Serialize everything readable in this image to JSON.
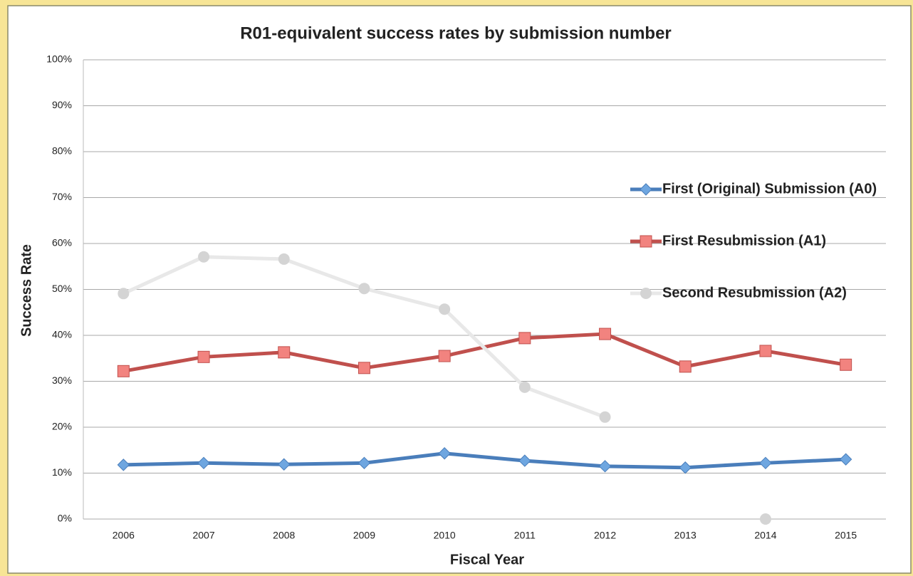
{
  "chart_data": {
    "type": "line",
    "title": "R01-equivalent success rates by submission number",
    "x_label": "Fiscal Year",
    "y_label": "Success Rate",
    "categories": [
      "2006",
      "2007",
      "2008",
      "2009",
      "2010",
      "2011",
      "2012",
      "2013",
      "2014",
      "2015"
    ],
    "series": [
      {
        "name": "First (Original) Submission (A0)",
        "color": "#4a7ebb",
        "marker_color": "#6ea6e0",
        "marker": "diamond",
        "values": [
          11.8,
          12.2,
          11.9,
          12.2,
          14.3,
          12.7,
          11.5,
          11.2,
          12.2,
          13.0
        ]
      },
      {
        "name": "First Resubmission (A1)",
        "color": "#c0504d",
        "marker_color": "#f2837f",
        "marker": "square",
        "values": [
          32.2,
          35.3,
          36.3,
          32.9,
          35.5,
          39.4,
          40.3,
          33.2,
          36.6,
          33.6
        ]
      },
      {
        "name": "Second Resubmission (A2)",
        "color": "#e8e8e8",
        "marker_color": "#d4d4d4",
        "marker": "circle",
        "values": [
          49.1,
          57.1,
          56.6,
          50.2,
          45.7,
          28.7,
          22.2,
          null,
          0,
          null
        ]
      }
    ],
    "ylim": [
      0,
      100
    ],
    "yticks": [
      {
        "value": 0,
        "label": "0%"
      },
      {
        "value": 10,
        "label": "10%"
      },
      {
        "value": 20,
        "label": "20%"
      },
      {
        "value": 30,
        "label": "30%"
      },
      {
        "value": 40,
        "label": "40%"
      },
      {
        "value": 50,
        "label": "50%"
      },
      {
        "value": 60,
        "label": "60%"
      },
      {
        "value": 70,
        "label": "70%"
      },
      {
        "value": 80,
        "label": "80%"
      },
      {
        "value": 90,
        "label": "90%"
      },
      {
        "value": 100,
        "label": "100%"
      }
    ],
    "grid": true,
    "legend": "right"
  }
}
